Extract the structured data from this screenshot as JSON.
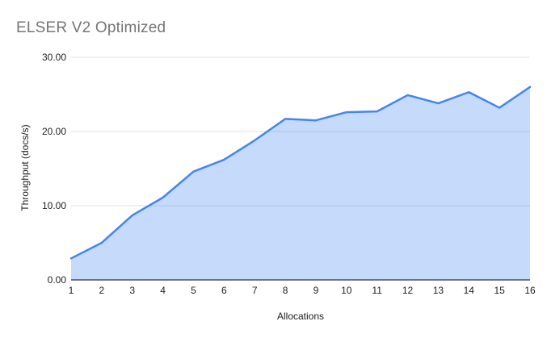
{
  "chart_data": {
    "type": "area",
    "title": "ELSER V2 Optimized",
    "xlabel": "Allocations",
    "ylabel": "Throughput (docs/s)",
    "x": [
      1,
      2,
      3,
      4,
      5,
      6,
      7,
      8,
      9,
      10,
      11,
      12,
      13,
      14,
      15,
      16
    ],
    "values": [
      2.9,
      5.0,
      8.7,
      11.1,
      14.6,
      16.2,
      18.8,
      21.7,
      21.5,
      22.6,
      22.7,
      24.9,
      23.8,
      25.3,
      23.2,
      26.0
    ],
    "ylim": [
      0,
      30
    ],
    "yticks": [
      {
        "value": 0,
        "label": "0.00"
      },
      {
        "value": 10,
        "label": "10.00"
      },
      {
        "value": 20,
        "label": "20.00"
      },
      {
        "value": 30,
        "label": "30.00"
      }
    ],
    "grid": true,
    "legend": "none"
  },
  "colors": {
    "line": "#4285f4",
    "fill": "rgba(66,133,244,0.3)",
    "grid": "#e0e0e0",
    "axis_line": "#333333",
    "tick_text": "#202124",
    "title_text": "#757575"
  }
}
